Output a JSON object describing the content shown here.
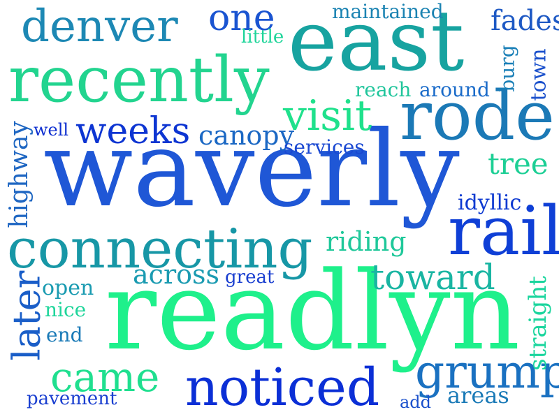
{
  "words": {
    "waverly": {
      "text": "waverly",
      "color": "#1f57d6"
    },
    "readlyn": {
      "text": "readlyn",
      "color": "#1ef08b"
    },
    "east": {
      "text": "east",
      "color": "#17a3a0"
    },
    "recently": {
      "text": "recently",
      "color": "#22d48f"
    },
    "rode": {
      "text": "rode",
      "color": "#1b79b6"
    },
    "connecting": {
      "text": "connecting",
      "color": "#1797a6"
    },
    "rail": {
      "text": "rail",
      "color": "#0f3fd6"
    },
    "noticed": {
      "text": "noticed",
      "color": "#0b2fd6"
    },
    "denver": {
      "text": "denver",
      "color": "#1d88b4"
    },
    "grump": {
      "text": "grump",
      "color": "#1a71c1"
    },
    "came": {
      "text": "came",
      "color": "#1fdf8f"
    },
    "weeks": {
      "text": "weeks",
      "color": "#0d35d2"
    },
    "visit": {
      "text": "visit",
      "color": "#1fe18c"
    },
    "one": {
      "text": "one",
      "color": "#1a54d1"
    },
    "later": {
      "text": "later",
      "color": "#1a5ec8"
    },
    "toward": {
      "text": "toward",
      "color": "#19b5a2"
    },
    "canopy": {
      "text": "canopy",
      "color": "#1b68c4"
    },
    "tree": {
      "text": "tree",
      "color": "#1dcf95"
    },
    "fades": {
      "text": "fades",
      "color": "#1e59c4"
    },
    "across": {
      "text": "across",
      "color": "#1b9bb1"
    },
    "riding": {
      "text": "riding",
      "color": "#1fc89a"
    },
    "straight": {
      "text": "straight",
      "color": "#1ad59d"
    },
    "highway": {
      "text": "highway",
      "color": "#1e66c2"
    },
    "maintained": {
      "text": "maintained",
      "color": "#1b83b2"
    },
    "services": {
      "text": "services",
      "color": "#1a48d2"
    },
    "reach": {
      "text": "reach",
      "color": "#1fc59b"
    },
    "around": {
      "text": "around",
      "color": "#1a6bc9"
    },
    "idyllic": {
      "text": "idyllic",
      "color": "#0e3ad1"
    },
    "town": {
      "text": "town",
      "color": "#1a50cc"
    },
    "burg": {
      "text": "burg",
      "color": "#1a7fb7"
    },
    "open": {
      "text": "open",
      "color": "#1a9bb1"
    },
    "nice": {
      "text": "nice",
      "color": "#1ed59a"
    },
    "end": {
      "text": "end",
      "color": "#1a7ab7"
    },
    "great": {
      "text": "great",
      "color": "#1a3fd0"
    },
    "well": {
      "text": "well",
      "color": "#0e2fd0"
    },
    "little": {
      "text": "little",
      "color": "#1fd59a"
    },
    "pavement": {
      "text": "pavement",
      "color": "#1a3fd0"
    },
    "add": {
      "text": "add",
      "color": "#1a50cc"
    },
    "areas": {
      "text": "areas",
      "color": "#1a7ab7"
    }
  }
}
